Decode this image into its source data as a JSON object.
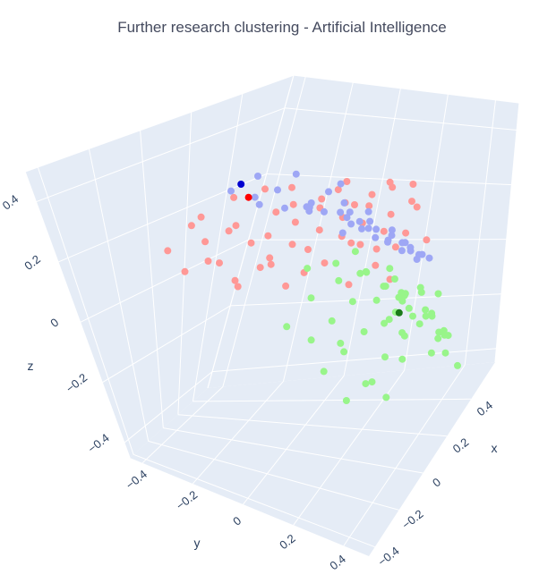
{
  "chart_data": {
    "type": "scatter",
    "title": "Further research clustering - Artificial Intelligence",
    "axes": {
      "x": {
        "label": "x",
        "range": [
          -0.45,
          0.6
        ],
        "ticks": [
          -0.4,
          -0.2,
          0,
          0.2,
          0.4
        ],
        "tick_labels": [
          "−0.4",
          "−0.2",
          "0",
          "0.2",
          "0.4"
        ]
      },
      "y": {
        "label": "y",
        "range": [
          -0.45,
          0.5
        ],
        "ticks": [
          -0.4,
          -0.2,
          0,
          0.2,
          0.4
        ],
        "tick_labels": [
          "−0.4",
          "−0.2",
          "0",
          "0.2",
          "0.4"
        ]
      },
      "z": {
        "label": "z",
        "range": [
          -0.45,
          0.5
        ],
        "ticks": [
          -0.4,
          -0.2,
          0,
          0.2,
          0.4
        ],
        "tick_labels": [
          "−0.4",
          "−0.2",
          "0",
          "0.2",
          "0.4"
        ]
      }
    },
    "grid": true,
    "legend": "none",
    "series": [
      {
        "color": "#ff9896",
        "points": [
          [
            0.1,
            -0.32,
            0.14
          ],
          [
            0.15,
            -0.3,
            0.06
          ],
          [
            0.05,
            -0.28,
            0.1
          ],
          [
            0.12,
            -0.25,
            0.18
          ],
          [
            0.2,
            -0.22,
            0.12
          ],
          [
            0.25,
            -0.18,
            0.06
          ],
          [
            0.08,
            -0.2,
            0.22
          ],
          [
            0.18,
            -0.15,
            0.16
          ],
          [
            0.28,
            -0.12,
            0.1
          ],
          [
            0.3,
            -0.2,
            0.02
          ],
          [
            0.22,
            -0.08,
            0.2
          ],
          [
            0.32,
            -0.05,
            0.14
          ],
          [
            0.35,
            -0.1,
            0.06
          ],
          [
            0.14,
            -0.1,
            0.26
          ],
          [
            0.26,
            -0.02,
            0.24
          ],
          [
            0.38,
            0.0,
            0.1
          ],
          [
            0.4,
            -0.06,
            0.0
          ],
          [
            0.2,
            0.02,
            0.3
          ],
          [
            0.3,
            0.04,
            0.2
          ],
          [
            0.42,
            0.05,
            0.06
          ],
          [
            0.36,
            0.08,
            0.16
          ],
          [
            0.24,
            0.08,
            0.28
          ],
          [
            0.45,
            0.1,
            -0.02
          ],
          [
            0.32,
            0.12,
            0.24
          ],
          [
            0.4,
            0.14,
            0.12
          ],
          [
            0.28,
            0.15,
            0.3
          ],
          [
            0.46,
            0.16,
            0.04
          ],
          [
            0.36,
            0.18,
            0.2
          ],
          [
            0.44,
            0.2,
            0.1
          ],
          [
            0.3,
            0.2,
            0.34
          ],
          [
            0.18,
            -0.26,
            0.0
          ],
          [
            0.06,
            -0.34,
            0.2
          ],
          [
            0.24,
            -0.28,
            -0.04
          ],
          [
            0.34,
            -0.16,
            -0.06
          ],
          [
            0.12,
            -0.14,
            0.08
          ],
          [
            0.42,
            0.22,
            0.22
          ],
          [
            0.38,
            0.24,
            0.3
          ],
          [
            0.48,
            0.26,
            0.06
          ],
          [
            0.22,
            -0.04,
            0.04
          ],
          [
            0.26,
            0.1,
            0.0
          ],
          [
            0.34,
            0.02,
            0.3
          ],
          [
            0.16,
            -0.06,
            0.34
          ],
          [
            0.44,
            0.0,
            0.18
          ],
          [
            0.3,
            -0.14,
            0.22
          ],
          [
            0.4,
            0.18,
            -0.04
          ],
          [
            0.2,
            -0.18,
            0.3
          ],
          [
            0.36,
            -0.02,
            0.26
          ],
          [
            0.1,
            -0.22,
            0.3
          ],
          [
            0.28,
            0.18,
            0.12
          ],
          [
            0.46,
            0.12,
            0.24
          ],
          [
            0.02,
            -0.4,
            0.12
          ],
          [
            0.08,
            -0.38,
            0.04
          ],
          [
            0.14,
            -0.36,
            0.2
          ],
          [
            0.5,
            0.2,
            0.16
          ],
          [
            0.22,
            0.12,
            0.16
          ]
        ]
      },
      {
        "color": "#9ea7f5",
        "points": [
          [
            -0.1,
            0.0,
            0.4
          ],
          [
            -0.05,
            0.05,
            0.38
          ],
          [
            -0.15,
            0.02,
            0.45
          ],
          [
            0.0,
            0.1,
            0.36
          ],
          [
            -0.2,
            -0.02,
            0.48
          ],
          [
            0.05,
            0.12,
            0.34
          ],
          [
            -0.08,
            0.15,
            0.42
          ],
          [
            0.02,
            0.2,
            0.3
          ],
          [
            -0.12,
            0.18,
            0.46
          ],
          [
            0.1,
            0.22,
            0.28
          ],
          [
            -0.02,
            0.25,
            0.36
          ],
          [
            0.08,
            0.28,
            0.3
          ],
          [
            -0.16,
            0.1,
            0.5
          ],
          [
            0.12,
            0.3,
            0.24
          ],
          [
            0.0,
            0.32,
            0.32
          ],
          [
            0.15,
            0.15,
            0.3
          ],
          [
            0.18,
            0.2,
            0.24
          ],
          [
            0.2,
            0.26,
            0.2
          ],
          [
            0.22,
            0.3,
            0.16
          ],
          [
            0.25,
            0.34,
            0.12
          ],
          [
            0.06,
            0.02,
            0.44
          ],
          [
            -0.04,
            -0.04,
            0.46
          ],
          [
            0.14,
            0.08,
            0.36
          ],
          [
            0.1,
            0.36,
            0.26
          ],
          [
            -0.06,
            0.3,
            0.4
          ],
          [
            0.2,
            0.1,
            0.3
          ],
          [
            0.26,
            0.16,
            0.22
          ],
          [
            0.3,
            0.22,
            0.18
          ],
          [
            0.16,
            0.36,
            0.2
          ],
          [
            0.04,
            0.4,
            0.3
          ],
          [
            -0.18,
            0.2,
            0.48
          ],
          [
            0.28,
            0.3,
            0.14
          ],
          [
            0.08,
            0.18,
            0.32
          ],
          [
            -0.1,
            0.26,
            0.44
          ],
          [
            0.24,
            0.06,
            0.34
          ],
          [
            0.32,
            0.12,
            0.22
          ],
          [
            0.18,
            0.38,
            0.18
          ],
          [
            0.12,
            0.42,
            0.22
          ],
          [
            0.3,
            0.36,
            0.1
          ],
          [
            0.34,
            0.2,
            0.14
          ]
        ]
      },
      {
        "color": "#98f58a",
        "points": [
          [
            0.1,
            0.3,
            0.1
          ],
          [
            0.15,
            0.35,
            0.05
          ],
          [
            0.05,
            0.4,
            0.12
          ],
          [
            0.2,
            0.32,
            0.0
          ],
          [
            0.0,
            0.45,
            0.08
          ],
          [
            0.25,
            0.38,
            -0.05
          ],
          [
            0.12,
            0.42,
            -0.02
          ],
          [
            0.3,
            0.3,
            -0.08
          ],
          [
            0.18,
            0.46,
            -0.1
          ],
          [
            0.35,
            0.36,
            -0.12
          ],
          [
            0.08,
            0.48,
            0.04
          ],
          [
            0.28,
            0.44,
            -0.15
          ],
          [
            0.22,
            0.28,
            0.06
          ],
          [
            0.4,
            0.32,
            -0.16
          ],
          [
            0.14,
            0.3,
            0.14
          ],
          [
            -0.05,
            0.35,
            0.14
          ],
          [
            -0.1,
            0.4,
            0.1
          ],
          [
            -0.15,
            0.32,
            0.18
          ],
          [
            -0.02,
            0.28,
            0.2
          ],
          [
            -0.2,
            0.38,
            0.12
          ],
          [
            -0.08,
            0.46,
            0.06
          ],
          [
            -0.25,
            0.3,
            0.16
          ],
          [
            -0.12,
            0.26,
            0.22
          ],
          [
            -0.3,
            0.36,
            0.1
          ],
          [
            -0.18,
            0.44,
            0.04
          ],
          [
            -0.35,
            0.28,
            0.14
          ],
          [
            -0.22,
            0.22,
            0.2
          ],
          [
            -0.4,
            0.34,
            0.08
          ],
          [
            -0.28,
            0.42,
            0.0
          ],
          [
            -0.06,
            0.22,
            0.24
          ],
          [
            0.02,
            0.36,
            0.04
          ],
          [
            0.06,
            0.26,
            0.16
          ],
          [
            -0.14,
            0.48,
            0.02
          ],
          [
            0.16,
            0.4,
            0.08
          ],
          [
            0.24,
            0.24,
            0.02
          ],
          [
            0.32,
            0.26,
            -0.04
          ],
          [
            0.36,
            0.42,
            -0.2
          ],
          [
            0.42,
            0.38,
            -0.22
          ],
          [
            0.2,
            0.48,
            -0.16
          ],
          [
            0.44,
            0.28,
            -0.1
          ],
          [
            -0.32,
            0.46,
            0.04
          ],
          [
            -0.38,
            0.22,
            0.18
          ],
          [
            -0.04,
            0.42,
            0.16
          ],
          [
            0.1,
            0.2,
            0.2
          ],
          [
            -0.26,
            0.48,
            -0.04
          ],
          [
            0.04,
            0.5,
            -0.06
          ],
          [
            -0.16,
            0.18,
            0.26
          ],
          [
            0.48,
            0.34,
            -0.26
          ],
          [
            0.26,
            0.5,
            -0.24
          ],
          [
            -0.42,
            0.42,
            0.02
          ],
          [
            0.12,
            0.36,
            -0.06
          ],
          [
            -0.2,
            0.3,
            0.06
          ],
          [
            0.3,
            0.4,
            -0.02
          ],
          [
            -0.1,
            0.34,
            0.26
          ],
          [
            0.38,
            0.22,
            -0.14
          ]
        ]
      }
    ],
    "centroids": [
      {
        "color": "#ff0000",
        "point": [
          0.42,
          -0.38,
          0.18
        ]
      },
      {
        "color": "#0000d0",
        "point": [
          -0.18,
          0.0,
          0.5
        ]
      },
      {
        "color": "#1a7a1a",
        "point": [
          0.05,
          0.38,
          0.05
        ]
      }
    ]
  }
}
